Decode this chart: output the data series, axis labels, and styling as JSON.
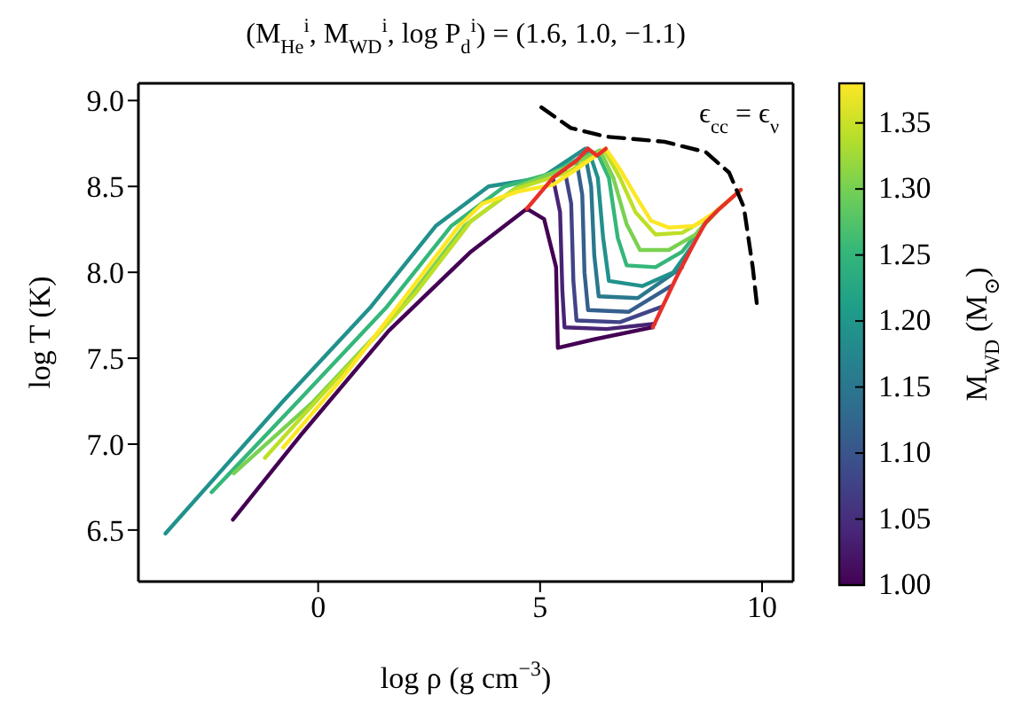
{
  "chart_data": {
    "type": "line",
    "title": "(M$_{He}$$^{i}$, M$_{WD}$$^{i}$, log P$_{d}$$^{i}$) = (1.6, 1.0, −1.1)",
    "xlabel": "log ρ (g cm$^{−3}$)",
    "ylabel": "log T (K)",
    "clabel": "M$_{WD}$ (M$_{⊙}$)",
    "annotations": [
      "ϵ$_{cc}$ = ϵ$_{ν}$"
    ],
    "xlim": [
      -4.05,
      10.7
    ],
    "ylim": [
      6.2,
      9.1
    ],
    "xticks": [
      0,
      5,
      10
    ],
    "yticks": [
      6.5,
      {
        "value": 7,
        "label": "7.0"
      },
      7.5,
      {
        "value": 8,
        "label": "8.0"
      },
      8.5,
      {
        "value": 9,
        "label": "9.0"
      }
    ],
    "clim": [
      1.0,
      1.38
    ],
    "cticks": [
      {
        "value": 1,
        "label": "1.00"
      },
      1.05,
      {
        "value": 1.1,
        "label": "1.10"
      },
      1.15,
      {
        "value": 1.2,
        "label": "1.20"
      },
      1.25,
      {
        "value": 1.3,
        "label": "1.30"
      },
      1.35
    ],
    "marker": "none",
    "series": [
      {
        "color": "#440154",
        "x": [
          -1.92,
          -0.4,
          1.59,
          3.44,
          4.7,
          5.09,
          5.36,
          5.4,
          6.22,
          7.54
        ],
        "values": [
          6.56,
          7.05,
          7.66,
          8.12,
          8.37,
          8.31,
          8.03,
          7.56,
          7.61,
          7.68
        ]
      },
      {
        "color": "#482475",
        "x": [
          5.29,
          5.45,
          5.5,
          5.55,
          6.5,
          7.58
        ],
        "values": [
          8.55,
          8.35,
          7.9,
          7.68,
          7.67,
          7.7
        ]
      },
      {
        "color": "#414487",
        "x": [
          5.55,
          5.7,
          5.75,
          5.82,
          6.8,
          7.75
        ],
        "values": [
          8.6,
          8.4,
          7.95,
          7.72,
          7.71,
          7.8
        ]
      },
      {
        "color": "#355f8d",
        "x": [
          5.82,
          5.95,
          6.0,
          6.08,
          7.0,
          7.95
        ],
        "values": [
          8.65,
          8.45,
          8.0,
          7.78,
          7.77,
          7.92
        ]
      },
      {
        "color": "#2a788e",
        "x": [
          6.0,
          6.15,
          6.22,
          6.32,
          7.2,
          8.2
        ],
        "values": [
          8.71,
          8.5,
          8.1,
          7.86,
          7.85,
          8.03
        ]
      },
      {
        "color": "#21918c",
        "x": [
          -3.44,
          -0.79,
          1.19,
          2.65,
          3.84,
          5.03,
          6.02,
          6.08,
          6.3,
          6.42,
          6.55,
          7.3,
          8.0,
          8.47
        ],
        "values": [
          6.48,
          7.25,
          7.8,
          8.27,
          8.5,
          8.55,
          8.72,
          8.72,
          8.55,
          8.2,
          7.95,
          7.92,
          8.0,
          8.17
        ]
      },
      {
        "color": "#35b779",
        "x": [
          -2.4,
          -0.45,
          1.55,
          3.0,
          4.2,
          5.3,
          6.0,
          6.28,
          6.55,
          6.75,
          6.95,
          7.6,
          8.2,
          8.73
        ],
        "values": [
          6.72,
          7.25,
          7.8,
          8.27,
          8.5,
          8.58,
          8.68,
          8.7,
          8.55,
          8.2,
          8.04,
          8.03,
          8.12,
          8.29
        ]
      },
      {
        "color": "#7ad151",
        "x": [
          -1.9,
          -0.1,
          1.9,
          3.3,
          4.5,
          5.5,
          6.35,
          6.65,
          6.95,
          7.25,
          7.9,
          8.5,
          9.0
        ],
        "values": [
          6.83,
          7.25,
          7.8,
          8.27,
          8.5,
          8.6,
          8.71,
          8.55,
          8.28,
          8.13,
          8.13,
          8.22,
          8.36
        ]
      },
      {
        "color": "#bddf26",
        "x": [
          -1.2,
          0.2,
          2.2,
          3.45,
          4.4,
          5.6,
          6.45,
          6.8,
          7.15,
          7.6,
          8.2,
          8.8,
          9.3
        ],
        "values": [
          6.92,
          7.32,
          7.88,
          8.3,
          8.48,
          8.58,
          8.71,
          8.55,
          8.35,
          8.22,
          8.23,
          8.32,
          8.43
        ]
      },
      {
        "color": "#fde725",
        "x": [
          -0.79,
          0.53,
          1.85,
          3.17,
          3.7,
          4.5,
          5.29,
          5.82,
          6.48,
          6.8,
          7.14,
          7.5,
          7.9,
          8.47,
          9.0,
          9.52
        ],
        "values": [
          6.98,
          7.38,
          7.82,
          8.27,
          8.4,
          8.47,
          8.51,
          8.6,
          8.72,
          8.6,
          8.45,
          8.3,
          8.26,
          8.27,
          8.36,
          8.48
        ]
      },
      {
        "color": "#e8302a",
        "x": [
          4.7,
          5.29,
          5.82,
          6.08,
          6.28,
          6.48
        ],
        "values": [
          8.37,
          8.55,
          8.65,
          8.72,
          8.68,
          8.72
        ]
      },
      {
        "color": "#e8302a",
        "x": [
          7.54,
          8.07,
          8.47,
          8.73,
          9.0,
          9.52
        ],
        "values": [
          7.68,
          7.97,
          8.17,
          8.29,
          8.36,
          8.48
        ]
      },
      {
        "color": "#000000",
        "line_style": "dashed",
        "x": [
          5.03,
          5.69,
          6.48,
          7.8,
          8.73,
          9.26,
          9.59,
          9.79,
          9.89
        ],
        "values": [
          8.96,
          8.84,
          8.79,
          8.76,
          8.7,
          8.58,
          8.38,
          8.03,
          7.8
        ]
      }
    ]
  }
}
